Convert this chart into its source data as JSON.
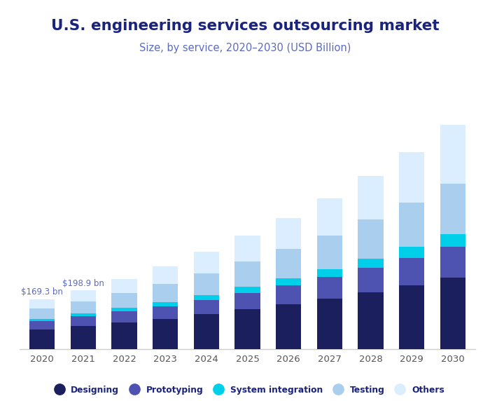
{
  "years": [
    "2020",
    "2021",
    "2022",
    "2023",
    "2024",
    "2025",
    "2026",
    "2027",
    "2028",
    "2029",
    "2030"
  ],
  "designing": [
    67.0,
    78.5,
    90.0,
    103.0,
    118.0,
    135.0,
    152.0,
    172.0,
    193.0,
    217.0,
    243.0
  ],
  "prototyping": [
    27.0,
    32.0,
    37.0,
    43.0,
    49.0,
    56.0,
    64.0,
    72.0,
    82.0,
    92.0,
    104.0
  ],
  "system_integration": [
    8.0,
    10.0,
    12.0,
    14.0,
    17.0,
    20.0,
    24.0,
    28.0,
    33.0,
    38.0,
    44.0
  ],
  "testing": [
    35.0,
    42.0,
    52.0,
    62.0,
    74.0,
    86.0,
    100.0,
    114.0,
    132.0,
    151.0,
    172.0
  ],
  "others": [
    32.3,
    36.4,
    47.0,
    58.0,
    72.0,
    88.0,
    106.0,
    126.0,
    148.0,
    172.0,
    200.0
  ],
  "annotations": [
    {
      "year_idx": 0,
      "label": "$169.3 bn"
    },
    {
      "year_idx": 1,
      "label": "$198.9 bn"
    }
  ],
  "colors": {
    "designing": "#1b1f5e",
    "prototyping": "#4e52b0",
    "system_integration": "#00cfea",
    "testing": "#aacfee",
    "others": "#dbeeff"
  },
  "title": "U.S. engineering services outsourcing market",
  "subtitle": "Size, by service, 2020–2030 (USD Billion)",
  "legend_labels": [
    "Designing",
    "Prototyping",
    "System integration",
    "Testing",
    "Others"
  ],
  "background_color": "#ffffff",
  "title_color": "#1a237e",
  "subtitle_color": "#5c6bc0",
  "axis_color": "#cccccc",
  "tick_color": "#555555",
  "annotation_color": "#5c6bc0"
}
